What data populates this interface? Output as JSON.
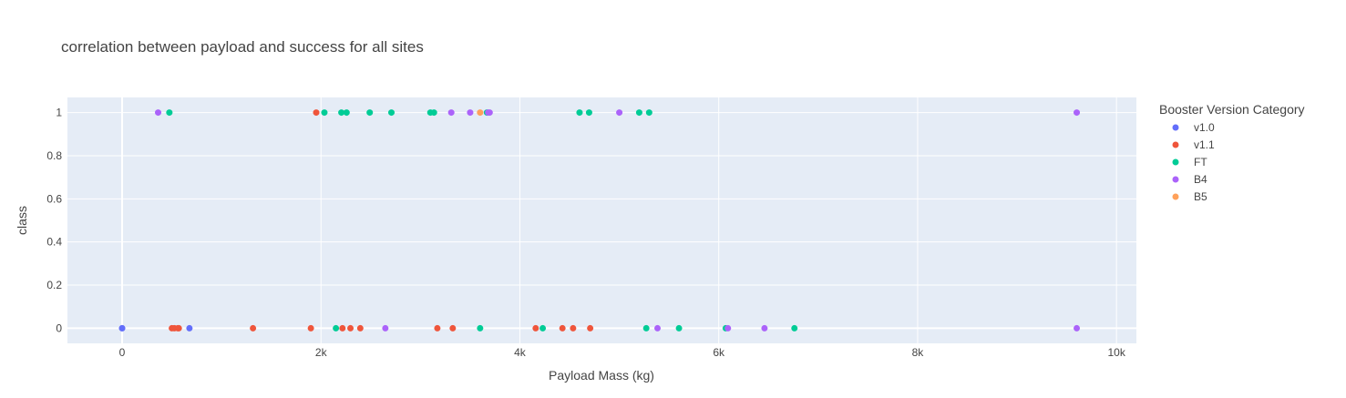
{
  "chart_data": {
    "type": "scatter",
    "title": "correlation between payload and success for all sites",
    "xlabel": "Payload Mass (kg)",
    "ylabel": "class",
    "xlim": [
      -550,
      10200
    ],
    "ylim": [
      -0.07,
      1.07
    ],
    "x_ticks": [
      0,
      2000,
      4000,
      6000,
      8000,
      10000
    ],
    "x_tick_labels": [
      "0",
      "2k",
      "4k",
      "6k",
      "8k",
      "10k"
    ],
    "y_ticks": [
      0,
      0.2,
      0.4,
      0.6,
      0.8,
      1
    ],
    "y_tick_labels": [
      "0",
      "0.2",
      "0.4",
      "0.6",
      "0.8",
      "1"
    ],
    "grid": true,
    "legend_title": "Booster Version Category",
    "legend_position": "right",
    "series": [
      {
        "name": "v1.0",
        "color": "#636efa",
        "points": [
          [
            0,
            0
          ],
          [
            0,
            0
          ],
          [
            677,
            0
          ]
        ]
      },
      {
        "name": "v1.1",
        "color": "#EF553B",
        "points": [
          [
            500,
            0
          ],
          [
            525,
            0
          ],
          [
            560,
            0
          ],
          [
            570,
            0
          ],
          [
            1316,
            0
          ],
          [
            1898,
            0
          ],
          [
            2216,
            0
          ],
          [
            2296,
            0
          ],
          [
            2395,
            0
          ],
          [
            3170,
            0
          ],
          [
            3325,
            0
          ],
          [
            4159,
            0
          ],
          [
            4428,
            0
          ],
          [
            4535,
            0
          ],
          [
            4707,
            0
          ],
          [
            1952,
            1
          ]
        ]
      },
      {
        "name": "FT",
        "color": "#00cc96",
        "points": [
          [
            475,
            1
          ],
          [
            2034,
            1
          ],
          [
            2205,
            1
          ],
          [
            2257,
            1
          ],
          [
            2490,
            1
          ],
          [
            2708,
            1
          ],
          [
            3100,
            1
          ],
          [
            3136,
            1
          ],
          [
            3669,
            1
          ],
          [
            4600,
            1
          ],
          [
            4696,
            1
          ],
          [
            5200,
            1
          ],
          [
            5300,
            1
          ],
          [
            2150,
            0
          ],
          [
            3600,
            0
          ],
          [
            4230,
            0
          ],
          [
            5271,
            0
          ],
          [
            5600,
            0
          ],
          [
            6070,
            0
          ],
          [
            6761,
            0
          ]
        ]
      },
      {
        "name": "B4",
        "color": "#ab63fa",
        "points": [
          [
            362,
            1
          ],
          [
            3310,
            1
          ],
          [
            3500,
            1
          ],
          [
            3681,
            1
          ],
          [
            3696,
            1
          ],
          [
            5000,
            1
          ],
          [
            9600,
            1
          ],
          [
            2647,
            0
          ],
          [
            5384,
            0
          ],
          [
            6092,
            0
          ],
          [
            6460,
            0
          ],
          [
            9600,
            0
          ]
        ]
      },
      {
        "name": "B5",
        "color": "#FFA15A",
        "points": [
          [
            3600,
            1
          ]
        ]
      }
    ]
  }
}
